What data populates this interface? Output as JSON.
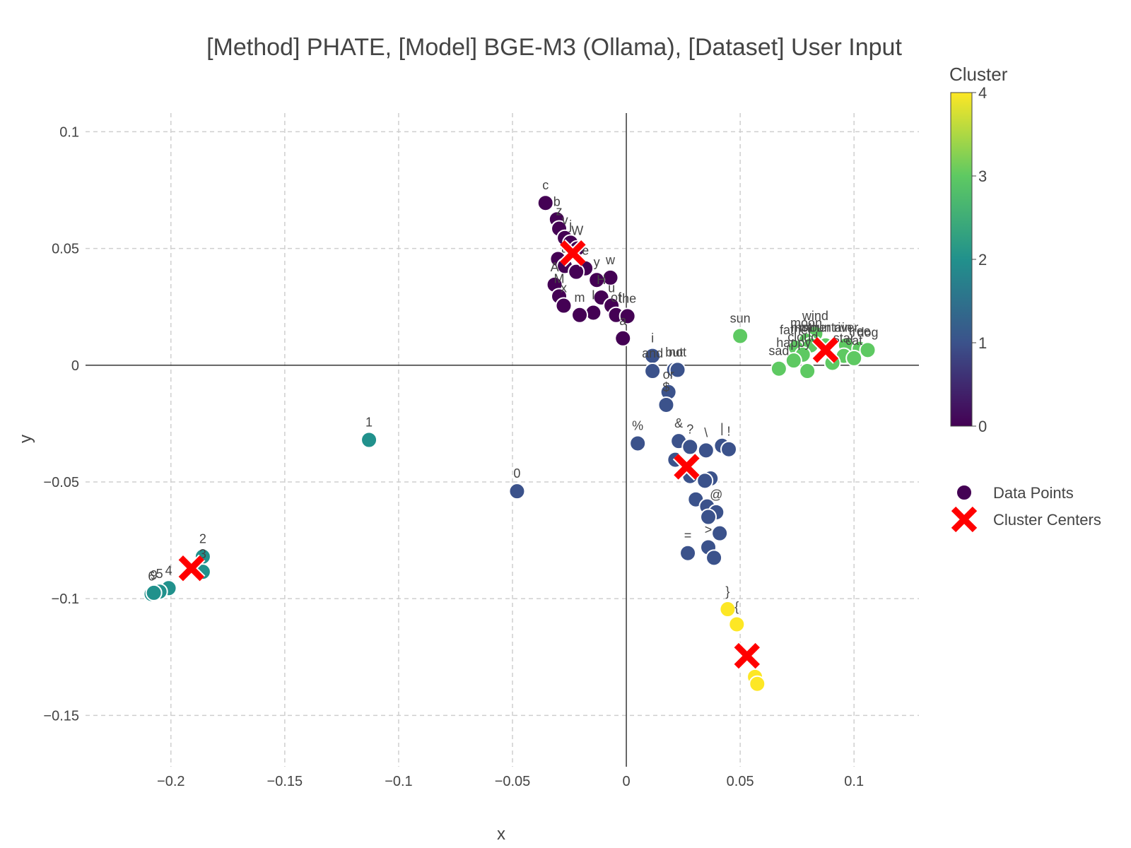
{
  "chart_data": {
    "type": "scatter",
    "title": "[Method] PHATE, [Model] BGE-M3 (Ollama), [Dataset] User Input",
    "xlabel": "x",
    "ylabel": "y",
    "xlim": [
      -0.2375,
      0.1285
    ],
    "ylim": [
      -0.172,
      0.108
    ],
    "xticks": [
      -0.2,
      -0.15,
      -0.1,
      -0.05,
      0,
      0.05,
      0.1
    ],
    "xtick_labels": [
      "−0.2",
      "−0.15",
      "−0.1",
      "−0.05",
      "0",
      "0.05",
      "0.1"
    ],
    "yticks": [
      0.1,
      0.05,
      0,
      -0.05,
      -0.1,
      -0.15
    ],
    "ytick_labels": [
      "0.1",
      "0.05",
      "0",
      "−0.05",
      "−0.1",
      "−0.15"
    ],
    "grid": true,
    "legend": {
      "placement": "right",
      "entries": [
        "Data Points",
        "Cluster Centers"
      ]
    },
    "colorbar": {
      "title": "Cluster",
      "range": [
        0,
        4
      ],
      "ticks": [
        "0",
        "1",
        "2",
        "3",
        "4"
      ],
      "colorscale": [
        "#440154",
        "#3b528b",
        "#21918c",
        "#5ec962",
        "#fde725"
      ]
    },
    "cluster_colors": [
      "#440154",
      "#3b528b",
      "#21918c",
      "#5ec962",
      "#fde725"
    ],
    "center_color": "#ff0000",
    "series": [
      {
        "name": "Data Points",
        "points": [
          {
            "x": -0.0355,
            "y": 0.0695,
            "label": "c",
            "cluster": 0
          },
          {
            "x": -0.0305,
            "y": 0.0625,
            "label": "b",
            "cluster": 0
          },
          {
            "x": -0.0295,
            "y": 0.0585,
            "label": "z",
            "cluster": 0
          },
          {
            "x": -0.027,
            "y": 0.0545,
            "label": "v",
            "cluster": 0
          },
          {
            "x": -0.0245,
            "y": 0.0525,
            "label": "j",
            "cluster": 0
          },
          {
            "x": -0.0215,
            "y": 0.05,
            "label": "W",
            "cluster": 0
          },
          {
            "x": -0.03,
            "y": 0.0455,
            "label": "",
            "cluster": 0
          },
          {
            "x": -0.027,
            "y": 0.0425,
            "label": "a",
            "cluster": 0
          },
          {
            "x": -0.018,
            "y": 0.0415,
            "label": "e",
            "cluster": 0
          },
          {
            "x": -0.022,
            "y": 0.04,
            "label": "o",
            "cluster": 0
          },
          {
            "x": -0.007,
            "y": 0.0375,
            "label": "w",
            "cluster": 0
          },
          {
            "x": -0.013,
            "y": 0.0365,
            "label": "y",
            "cluster": 0
          },
          {
            "x": -0.0315,
            "y": 0.0345,
            "label": "A",
            "cluster": 0
          },
          {
            "x": -0.0295,
            "y": 0.0295,
            "label": "M",
            "cluster": 0
          },
          {
            "x": -0.011,
            "y": 0.029,
            "label": "H",
            "cluster": 0
          },
          {
            "x": -0.0275,
            "y": 0.0255,
            "label": "x",
            "cluster": 0
          },
          {
            "x": -0.0065,
            "y": 0.0255,
            "label": "u",
            "cluster": 0
          },
          {
            "x": -0.0145,
            "y": 0.0225,
            "label": "I",
            "cluster": 0
          },
          {
            "x": -0.0205,
            "y": 0.0215,
            "label": "m",
            "cluster": 0
          },
          {
            "x": -0.0045,
            "y": 0.0215,
            "label": "of",
            "cluster": 0
          },
          {
            "x": 0.0005,
            "y": 0.021,
            "label": "the",
            "cluster": 0
          },
          {
            "x": -0.0015,
            "y": 0.0115,
            "label": "a",
            "cluster": 0
          },
          {
            "x": 0.0115,
            "y": 0.004,
            "label": "i",
            "cluster": 1
          },
          {
            "x": 0.0115,
            "y": -0.0025,
            "label": "and",
            "cluster": 1
          },
          {
            "x": 0.021,
            "y": -0.002,
            "label": "but",
            "cluster": 1
          },
          {
            "x": 0.0225,
            "y": -0.002,
            "label": "not",
            "cluster": 1
          },
          {
            "x": 0.0185,
            "y": -0.0115,
            "label": "or",
            "cluster": 1
          },
          {
            "x": 0.0175,
            "y": -0.017,
            "label": "$",
            "cluster": 1
          },
          {
            "x": 0.005,
            "y": -0.0335,
            "label": "%",
            "cluster": 1
          },
          {
            "x": 0.023,
            "y": -0.0325,
            "label": "&",
            "cluster": 1
          },
          {
            "x": 0.028,
            "y": -0.035,
            "label": "?",
            "cluster": 1
          },
          {
            "x": 0.035,
            "y": -0.0365,
            "label": "\\",
            "cluster": 1
          },
          {
            "x": 0.042,
            "y": -0.0345,
            "label": "|",
            "cluster": 1
          },
          {
            "x": 0.045,
            "y": -0.036,
            "label": "!",
            "cluster": 1
          },
          {
            "x": 0.0215,
            "y": -0.0405,
            "label": "",
            "cluster": 1
          },
          {
            "x": 0.028,
            "y": -0.0475,
            "label": "",
            "cluster": 1
          },
          {
            "x": 0.037,
            "y": -0.0485,
            "label": "",
            "cluster": 1
          },
          {
            "x": 0.0345,
            "y": -0.0495,
            "label": "",
            "cluster": 1
          },
          {
            "x": 0.0305,
            "y": -0.0575,
            "label": "",
            "cluster": 1
          },
          {
            "x": 0.0355,
            "y": -0.0605,
            "label": "",
            "cluster": 1
          },
          {
            "x": 0.0395,
            "y": -0.063,
            "label": "@",
            "cluster": 1
          },
          {
            "x": 0.036,
            "y": -0.065,
            "label": "",
            "cluster": 1
          },
          {
            "x": 0.041,
            "y": -0.072,
            "label": "",
            "cluster": 1
          },
          {
            "x": 0.036,
            "y": -0.078,
            "label": ">",
            "cluster": 1
          },
          {
            "x": 0.0385,
            "y": -0.0825,
            "label": "",
            "cluster": 1
          },
          {
            "x": 0.027,
            "y": -0.0805,
            "label": "=",
            "cluster": 1
          },
          {
            "x": -0.048,
            "y": -0.054,
            "label": "0",
            "cluster": 1
          },
          {
            "x": -0.113,
            "y": -0.032,
            "label": "1",
            "cluster": 2
          },
          {
            "x": -0.186,
            "y": -0.082,
            "label": "2",
            "cluster": 2
          },
          {
            "x": -0.186,
            "y": -0.0885,
            "label": "3",
            "cluster": 2
          },
          {
            "x": -0.201,
            "y": -0.0955,
            "label": "4",
            "cluster": 2
          },
          {
            "x": -0.205,
            "y": -0.097,
            "label": "5",
            "cluster": 2
          },
          {
            "x": -0.2085,
            "y": -0.098,
            "label": "6",
            "cluster": 2
          },
          {
            "x": -0.2075,
            "y": -0.0975,
            "label": "9",
            "cluster": 2
          },
          {
            "x": 0.05,
            "y": 0.0125,
            "label": "sun",
            "cluster": 3
          },
          {
            "x": 0.083,
            "y": 0.0135,
            "label": "wind",
            "cluster": 3
          },
          {
            "x": 0.079,
            "y": 0.0105,
            "label": "moon",
            "cluster": 3
          },
          {
            "x": 0.0745,
            "y": 0.0075,
            "label": "father",
            "cluster": 3
          },
          {
            "x": 0.081,
            "y": 0.0085,
            "label": "mother",
            "cluster": 3
          },
          {
            "x": 0.0875,
            "y": 0.0085,
            "label": "mountain",
            "cluster": 3
          },
          {
            "x": 0.0965,
            "y": 0.0085,
            "label": "river",
            "cluster": 3
          },
          {
            "x": 0.1025,
            "y": 0.007,
            "label": "tree",
            "cluster": 3
          },
          {
            "x": 0.106,
            "y": 0.0065,
            "label": "dog",
            "cluster": 3
          },
          {
            "x": 0.0775,
            "y": 0.0045,
            "label": "cloud",
            "cluster": 3
          },
          {
            "x": 0.0735,
            "y": 0.002,
            "label": "happy",
            "cluster": 3
          },
          {
            "x": 0.067,
            "y": -0.0015,
            "label": "sad",
            "cluster": 3
          },
          {
            "x": 0.0795,
            "y": -0.0025,
            "label": "",
            "cluster": 3
          },
          {
            "x": 0.0955,
            "y": 0.004,
            "label": "star",
            "cluster": 3
          },
          {
            "x": 0.1,
            "y": 0.003,
            "label": "cat",
            "cluster": 3
          },
          {
            "x": 0.0905,
            "y": 0.001,
            "label": "",
            "cluster": 3
          },
          {
            "x": 0.0445,
            "y": -0.1045,
            "label": "}",
            "cluster": 4
          },
          {
            "x": 0.0485,
            "y": -0.111,
            "label": "{",
            "cluster": 4
          },
          {
            "x": 0.0565,
            "y": -0.1335,
            "label": "",
            "cluster": 4
          },
          {
            "x": 0.0575,
            "y": -0.1365,
            "label": "",
            "cluster": 4
          }
        ]
      },
      {
        "name": "Cluster Centers",
        "points": [
          {
            "x": -0.0235,
            "y": 0.048
          },
          {
            "x": 0.0265,
            "y": -0.0435
          },
          {
            "x": -0.191,
            "y": -0.087
          },
          {
            "x": 0.0875,
            "y": 0.0065
          },
          {
            "x": 0.053,
            "y": -0.1245
          }
        ]
      }
    ]
  }
}
